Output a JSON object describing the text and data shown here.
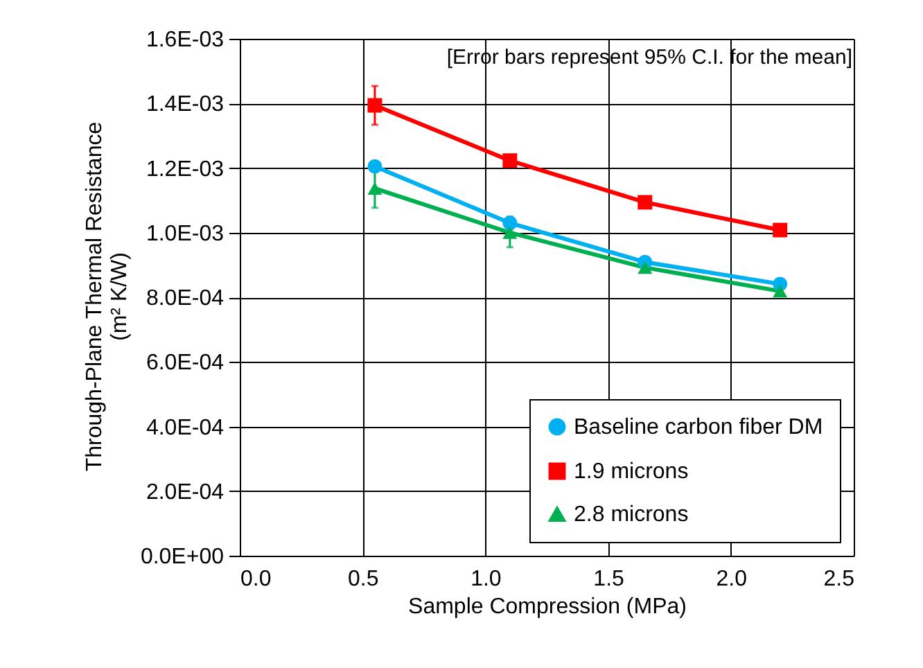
{
  "chart_data": {
    "type": "line",
    "xlabel": "Sample Compression (MPa)",
    "ylabel": "Through-Plane Thermal Resistance\n(m² K/W)",
    "annotations": [
      "[Error bars represent 95% C.I. for the mean]"
    ],
    "x": [
      0.55,
      1.1,
      1.65,
      2.2
    ],
    "series": [
      {
        "name": "Baseline carbon fiber DM",
        "color": "#00b0f0",
        "marker": "circle",
        "values": [
          0.001205,
          0.00103,
          0.000909,
          0.000841
        ],
        "errors": [
          1.5e-05,
          2e-05,
          1.2e-05,
          1e-05
        ]
      },
      {
        "name": "1.9 microns",
        "color": "#ff0000",
        "marker": "square",
        "values": [
          0.001394,
          0.001223,
          0.001094,
          0.001008
        ],
        "errors": [
          6e-05,
          null,
          null,
          null
        ]
      },
      {
        "name": "2.8 microns",
        "color": "#00b050",
        "marker": "triangle",
        "values": [
          0.001137,
          0.001,
          0.000892,
          0.000819
        ],
        "errors": [
          6e-05,
          4.5e-05,
          1.5e-05,
          1.2e-05
        ]
      }
    ],
    "xlim": [
      0,
      2.5
    ],
    "xticks": [
      {
        "value": 0,
        "label": "0.0"
      },
      0.5,
      {
        "value": 1,
        "label": "1.0"
      },
      1.5,
      {
        "value": 2,
        "label": "2.0"
      },
      2.5
    ],
    "ylim": [
      0,
      0.0016
    ],
    "yticks": [
      {
        "value": 0,
        "label": "0.0E+00"
      },
      {
        "value": 0.0002,
        "label": "2.0E-04"
      },
      {
        "value": 0.0004,
        "label": "4.0E-04"
      },
      {
        "value": 0.0006,
        "label": "6.0E-04"
      },
      {
        "value": 0.0008,
        "label": "8.0E-04"
      },
      {
        "value": 0.001,
        "label": "1.0E-03"
      },
      {
        "value": 0.0012,
        "label": "1.2E-03"
      },
      {
        "value": 0.0014,
        "label": "1.4E-03"
      },
      {
        "value": 0.0016,
        "label": "1.6E-03"
      }
    ],
    "grid": true,
    "legend": "bottom right",
    "line_style": "solid"
  }
}
